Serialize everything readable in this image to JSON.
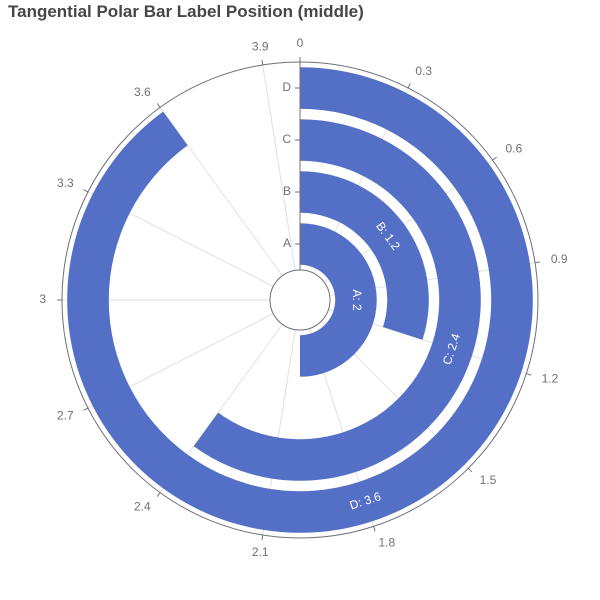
{
  "chart_data": {
    "type": "bar",
    "polar": true,
    "title": "Tangential Polar Bar Label Position (middle)",
    "categories": [
      "A",
      "B",
      "C",
      "D"
    ],
    "values": [
      2,
      1.2,
      2.4,
      3.6
    ],
    "bar_labels": [
      "A: 2",
      "B: 1.2",
      "C: 2.4",
      "D: 3.6"
    ],
    "angle_axis": {
      "min": 0,
      "max": 4,
      "ticks": [
        "0",
        "0.3",
        "0.6",
        "0.9",
        "1.2",
        "1.5",
        "1.8",
        "2.1",
        "2.4",
        "2.7",
        "3",
        "3.3",
        "3.6",
        "3.9"
      ]
    },
    "label_position": "middle",
    "bar_color": "#5470c6",
    "grid": true
  }
}
